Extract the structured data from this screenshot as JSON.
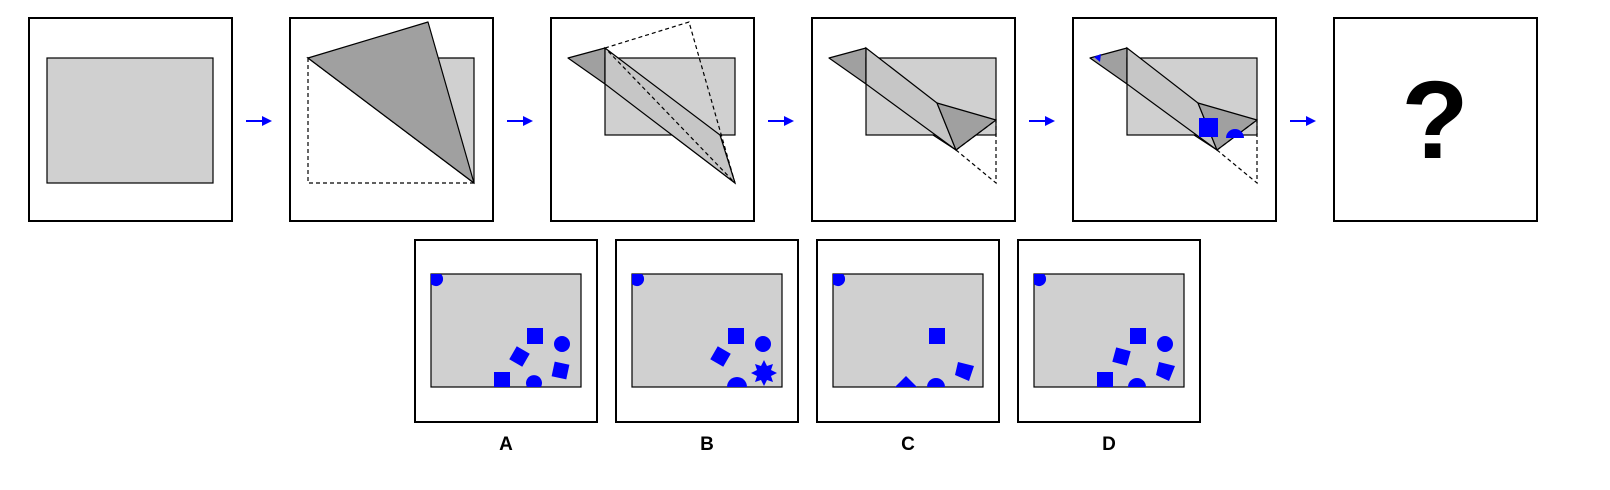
{
  "question_mark": "?",
  "options": [
    {
      "label": "A"
    },
    {
      "label": "B"
    },
    {
      "label": "C"
    },
    {
      "label": "D"
    }
  ],
  "colors": {
    "paper": "#d0d0d0",
    "flap": "#a0a0a0",
    "mark": "#0000ff",
    "arrow": "#0000ff",
    "outline": "#000000"
  }
}
